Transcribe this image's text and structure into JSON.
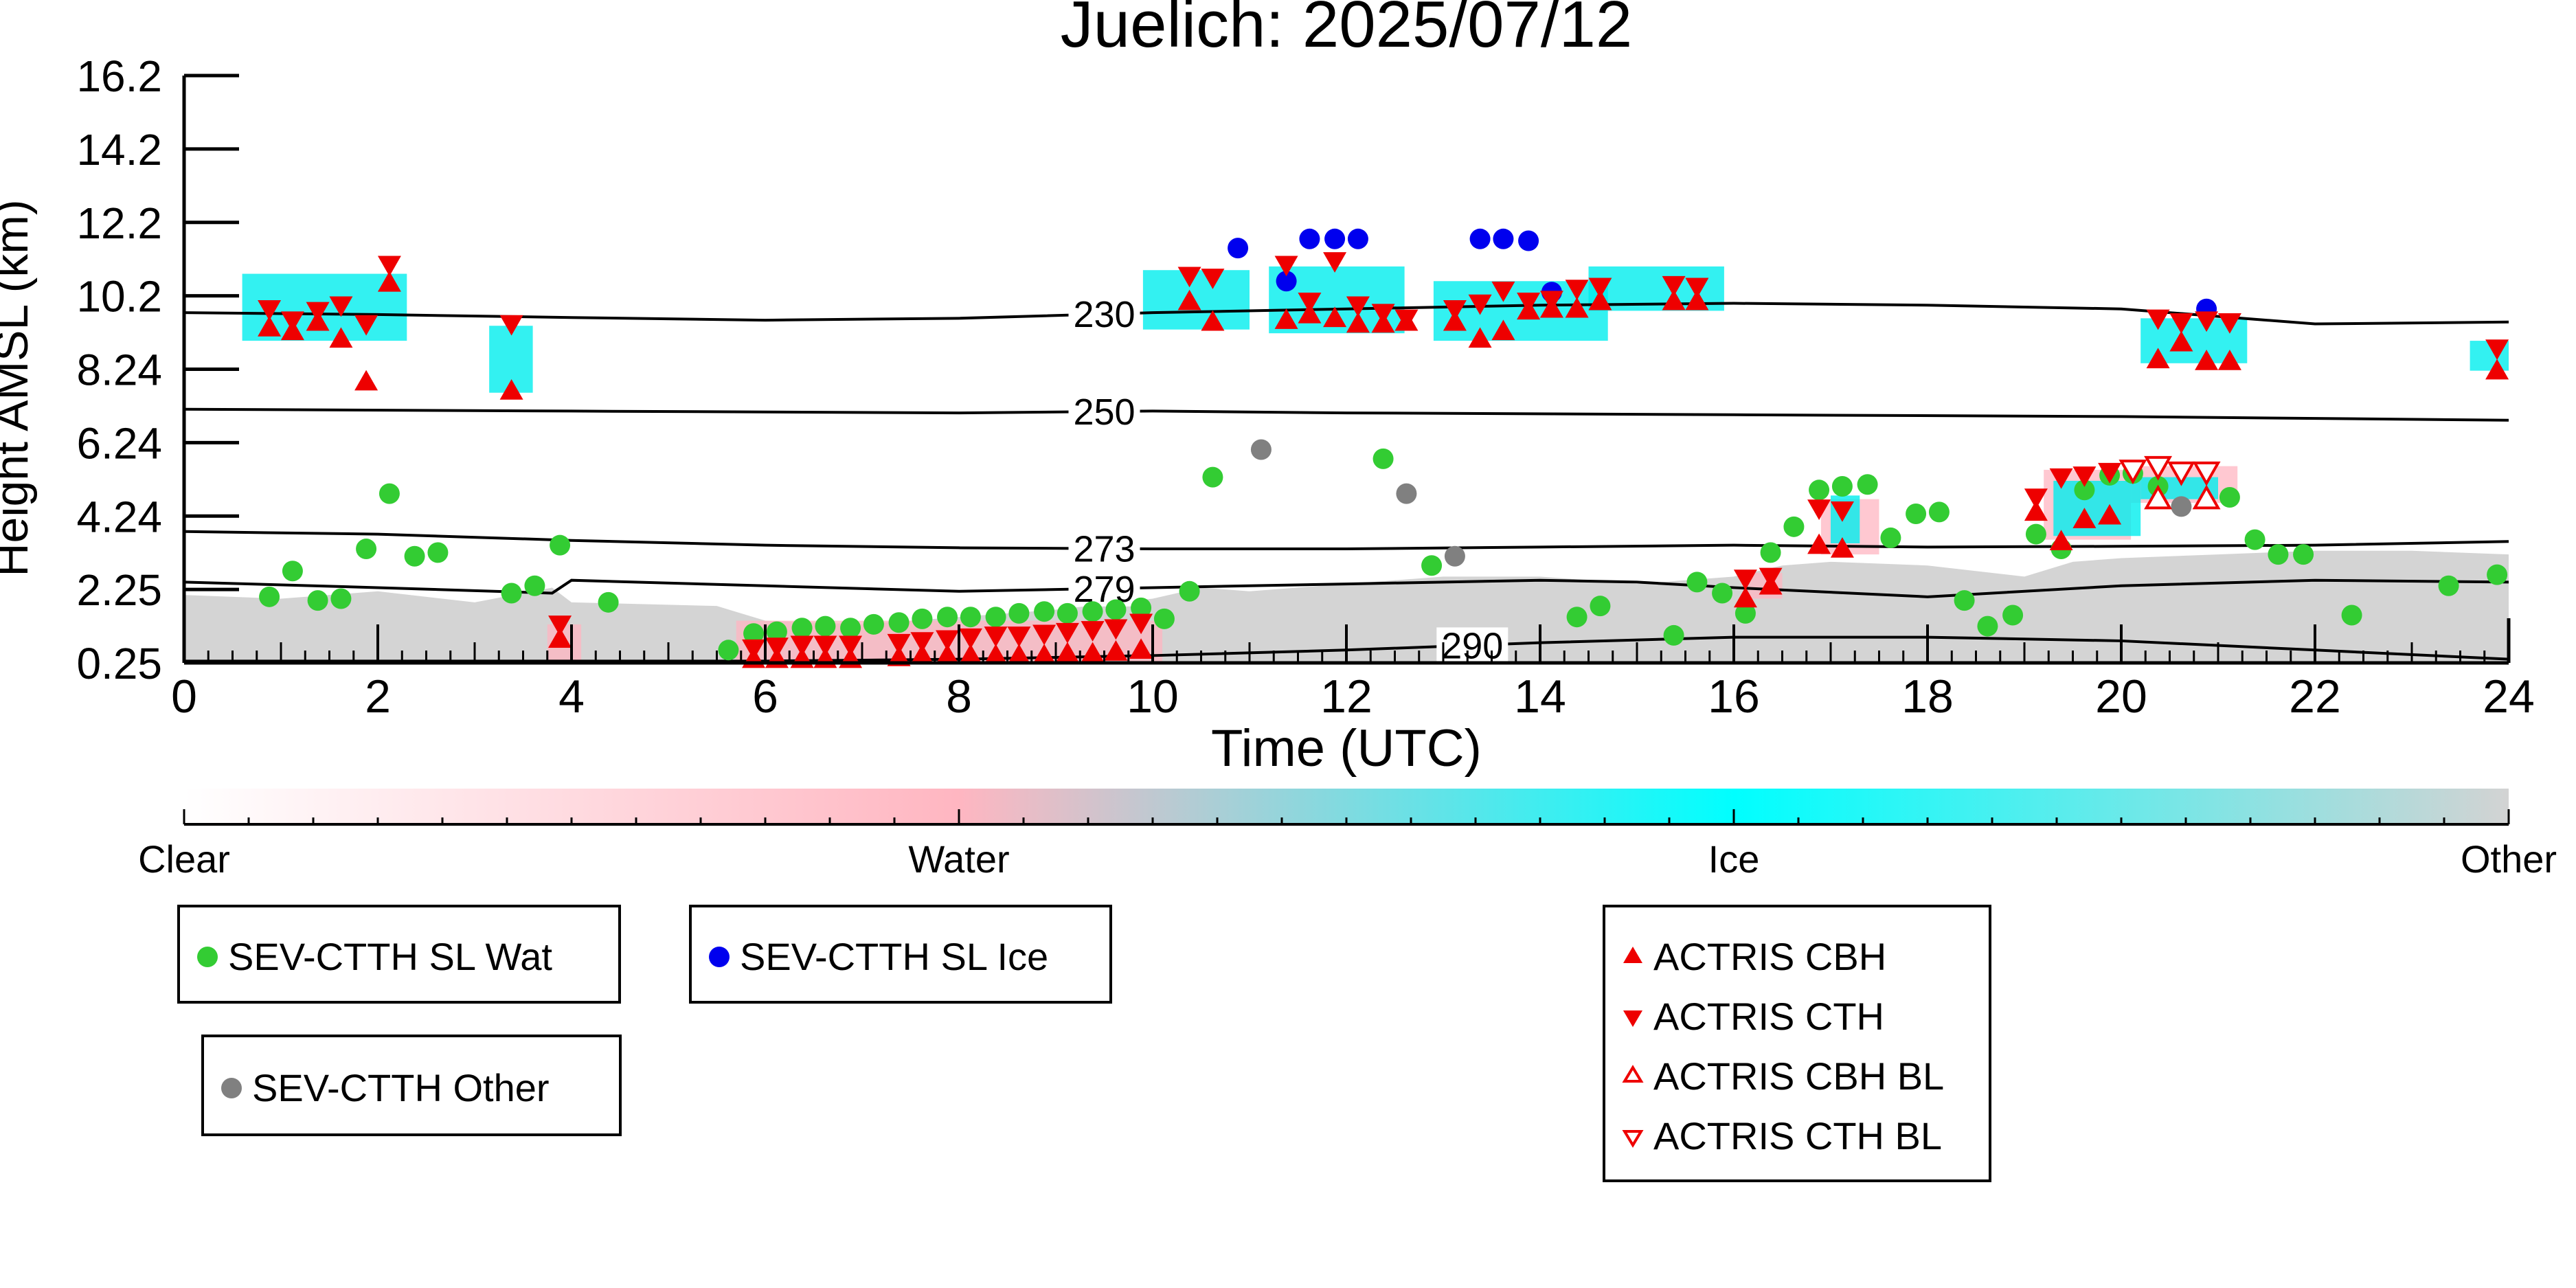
{
  "chart_data": {
    "type": "scatter",
    "title": "Juelich: 2025/07/12",
    "xlabel": "Time (UTC)",
    "ylabel": "Height AMSL (km)",
    "xlim": [
      0,
      24
    ],
    "ylim": [
      0.25,
      16.2
    ],
    "x_ticks": [
      "0",
      "2",
      "4",
      "6",
      "8",
      "10",
      "12",
      "14",
      "16",
      "18",
      "20",
      "22",
      "24"
    ],
    "y_ticks": [
      "16.2",
      "14.2",
      "12.2",
      "10.2",
      "8.24",
      "6.24",
      "4.24",
      "2.25",
      "0.25"
    ],
    "y_tick_values": [
      16.2,
      14.2,
      12.2,
      10.2,
      8.24,
      6.24,
      4.24,
      2.25,
      0.25
    ],
    "grid": false,
    "colorbar": {
      "labels": [
        "Clear",
        "Water",
        "Ice",
        "Other"
      ],
      "colors": [
        "#ffffff",
        "#ffb6c1",
        "#00ffff",
        "#d3d3d3"
      ]
    },
    "isotherms": [
      {
        "label": "230",
        "label_x": 9.5,
        "x": [
          0,
          2,
          4,
          6,
          8,
          10,
          12,
          14,
          16,
          18,
          20,
          22,
          24
        ],
        "y": [
          9.75,
          9.7,
          9.62,
          9.55,
          9.6,
          9.75,
          9.85,
          9.95,
          10.0,
          9.95,
          9.85,
          9.45,
          9.5
        ]
      },
      {
        "label": "250",
        "label_x": 9.5,
        "x": [
          0,
          4,
          8,
          10,
          12,
          16,
          20,
          24
        ],
        "y": [
          7.15,
          7.1,
          7.05,
          7.1,
          7.05,
          7.0,
          6.95,
          6.85
        ]
      },
      {
        "label": "273",
        "label_x": 9.5,
        "x": [
          0,
          2,
          4,
          6,
          8,
          10,
          12,
          14,
          16,
          18,
          20,
          22,
          24
        ],
        "y": [
          3.82,
          3.75,
          3.58,
          3.45,
          3.38,
          3.35,
          3.35,
          3.4,
          3.45,
          3.4,
          3.42,
          3.45,
          3.55
        ]
      },
      {
        "label": "279",
        "label_x": 9.5,
        "x": [
          0,
          2,
          3.8,
          4,
          6,
          8,
          10,
          12,
          14,
          15,
          16,
          18,
          20,
          22,
          24
        ],
        "y": [
          2.45,
          2.3,
          2.15,
          2.5,
          2.35,
          2.2,
          2.3,
          2.4,
          2.5,
          2.45,
          2.3,
          2.05,
          2.35,
          2.5,
          2.45
        ]
      },
      {
        "label": "290",
        "label_x": 13.3,
        "x": [
          0,
          4,
          6,
          8,
          10,
          12,
          14,
          16,
          18,
          20,
          22,
          24
        ],
        "y": [
          0.3,
          0.3,
          0.3,
          0.35,
          0.45,
          0.6,
          0.8,
          0.95,
          0.95,
          0.85,
          0.6,
          0.35
        ]
      }
    ],
    "series": [
      {
        "name": "SEV-CTTH SL Wat",
        "marker": "circle",
        "color": "#33cc33",
        "x": [
          0.88,
          1.12,
          1.38,
          1.62,
          1.88,
          2.12,
          2.38,
          2.62,
          3.38,
          3.62,
          3.88,
          4.38,
          5.62,
          5.88,
          6.12,
          6.38,
          6.62,
          6.88,
          7.12,
          7.38,
          7.62,
          7.88,
          8.12,
          8.38,
          8.62,
          8.88,
          9.12,
          9.38,
          9.62,
          9.88,
          10.12,
          10.38,
          10.62,
          12.38,
          12.88,
          14.38,
          14.62,
          15.38,
          15.62,
          15.88,
          16.12,
          16.38,
          16.62,
          16.88,
          17.12,
          17.38,
          17.62,
          17.88,
          18.12,
          18.38,
          18.62,
          18.88,
          19.12,
          19.38,
          19.62,
          19.88,
          20.12,
          20.38,
          21.12,
          21.38,
          21.62,
          21.88,
          22.38,
          23.38,
          23.88
        ],
        "y": [
          2.05,
          2.75,
          1.95,
          2.0,
          3.35,
          4.85,
          3.15,
          3.25,
          2.15,
          2.35,
          3.45,
          1.9,
          0.6,
          1.05,
          1.1,
          1.2,
          1.25,
          1.2,
          1.3,
          1.35,
          1.45,
          1.5,
          1.5,
          1.5,
          1.6,
          1.65,
          1.6,
          1.65,
          1.7,
          1.75,
          1.45,
          2.2,
          5.3,
          5.8,
          2.9,
          1.5,
          1.8,
          1.0,
          2.45,
          2.15,
          1.6,
          3.25,
          3.95,
          4.95,
          5.05,
          5.1,
          3.65,
          4.3,
          4.35,
          1.95,
          1.25,
          1.55,
          3.75,
          3.35,
          4.95,
          5.35,
          5.4,
          5.05,
          4.75,
          3.6,
          3.2,
          3.2,
          1.55,
          2.35,
          2.65
        ]
      },
      {
        "name": "SEV-CTTH SL Ice",
        "marker": "circle",
        "color": "#0000ee",
        "x": [
          10.88,
          11.38,
          11.62,
          11.88,
          12.12,
          13.38,
          13.62,
          13.88,
          14.12,
          20.88
        ],
        "y": [
          11.5,
          10.6,
          11.75,
          11.75,
          11.75,
          11.75,
          11.75,
          11.7,
          10.3,
          9.85
        ]
      },
      {
        "name": "SEV-CTTH Other",
        "marker": "circle",
        "color": "#808080",
        "x": [
          11.12,
          12.62,
          13.12,
          20.62
        ],
        "y": [
          6.05,
          4.85,
          3.15,
          4.5
        ]
      },
      {
        "name": "ACTRIS CBH",
        "marker": "triangle-up",
        "color": "#ee0000",
        "x": [
          0.88,
          1.12,
          1.38,
          1.62,
          1.88,
          2.12,
          3.38,
          3.88,
          5.88,
          6.12,
          6.38,
          6.62,
          6.88,
          7.38,
          7.62,
          7.88,
          8.12,
          8.38,
          8.62,
          8.88,
          9.12,
          9.38,
          9.62,
          9.88,
          10.38,
          10.62,
          11.38,
          11.62,
          11.88,
          12.12,
          12.38,
          12.62,
          13.12,
          13.38,
          13.62,
          13.88,
          14.12,
          14.38,
          14.62,
          15.38,
          15.62,
          16.12,
          16.38,
          16.88,
          17.12,
          19.12,
          19.38,
          19.62,
          19.88,
          20.38,
          20.62,
          20.88,
          21.12,
          23.88
        ],
        "y": [
          9.35,
          9.25,
          9.5,
          9.05,
          7.9,
          10.55,
          7.65,
          0.9,
          0.35,
          0.35,
          0.35,
          0.35,
          0.35,
          0.4,
          0.45,
          0.45,
          0.45,
          0.45,
          0.45,
          0.45,
          0.5,
          0.5,
          0.55,
          0.6,
          10.05,
          9.5,
          9.55,
          9.7,
          9.6,
          9.45,
          9.45,
          9.5,
          9.5,
          9.05,
          9.25,
          9.8,
          9.85,
          9.85,
          10.05,
          10.05,
          10.05,
          2.0,
          2.35,
          3.45,
          3.35,
          4.35,
          3.55,
          4.15,
          4.25,
          8.5,
          8.95,
          8.45,
          8.45,
          8.2
        ]
      },
      {
        "name": "ACTRIS CTH",
        "marker": "triangle-down",
        "color": "#ee0000",
        "x": [
          0.88,
          1.12,
          1.38,
          1.62,
          1.88,
          2.12,
          3.38,
          3.88,
          5.88,
          6.12,
          6.38,
          6.62,
          6.88,
          7.38,
          7.62,
          7.88,
          8.12,
          8.38,
          8.62,
          8.88,
          9.12,
          9.38,
          9.62,
          9.88,
          10.38,
          10.62,
          11.38,
          11.62,
          11.88,
          12.12,
          12.38,
          12.62,
          13.12,
          13.38,
          13.62,
          13.88,
          14.12,
          14.38,
          14.62,
          15.38,
          15.62,
          16.12,
          16.38,
          16.88,
          17.12,
          19.12,
          19.38,
          19.62,
          19.88,
          20.38,
          20.62,
          20.88,
          21.12,
          23.88
        ],
        "y": [
          9.85,
          9.55,
          9.8,
          9.95,
          9.45,
          11.05,
          9.45,
          1.3,
          0.65,
          0.7,
          0.75,
          0.75,
          0.75,
          0.8,
          0.85,
          0.9,
          0.95,
          1.0,
          1.0,
          1.05,
          1.1,
          1.15,
          1.2,
          1.35,
          10.75,
          10.7,
          11.05,
          10.05,
          11.15,
          9.95,
          9.75,
          9.6,
          9.85,
          10.0,
          10.35,
          10.05,
          10.1,
          10.4,
          10.45,
          10.5,
          10.45,
          2.55,
          2.6,
          4.45,
          4.4,
          4.75,
          5.3,
          5.35,
          5.45,
          9.6,
          9.5,
          9.55,
          9.5,
          8.8
        ]
      },
      {
        "name": "ACTRIS CBH BL",
        "marker": "triangle-up-open",
        "color": "#ee0000",
        "x": [
          20.38,
          20.88
        ],
        "y": [
          4.7,
          4.7
        ]
      },
      {
        "name": "ACTRIS CTH BL",
        "marker": "triangle-down-open",
        "color": "#ee0000",
        "x": [
          20.12,
          20.38,
          20.62,
          20.88
        ],
        "y": [
          5.5,
          5.6,
          5.45,
          5.45
        ]
      }
    ],
    "legend_placement": "below"
  }
}
